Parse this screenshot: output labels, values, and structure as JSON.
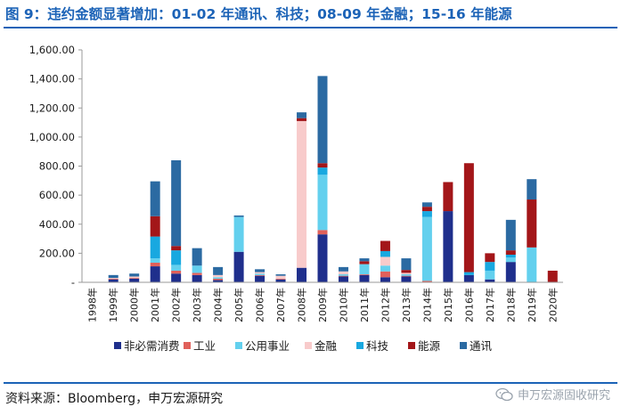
{
  "figure": {
    "title": "图 9：违约金额显著增加：01-02 年通讯、科技；08-09 年金融；15-16 年能源",
    "source": "资料来源：Bloomberg，申万宏源研究",
    "watermark": "申万宏源固收研究",
    "accent_color": "#1c63b7"
  },
  "chart_data": {
    "type": "bar",
    "stacked": true,
    "title": "",
    "xlabel": "",
    "ylabel": "",
    "ylim": [
      0,
      1600
    ],
    "yticks": [
      "-",
      "200.00",
      "400.00",
      "600.00",
      "800.00",
      "1,000.00",
      "1,200.00",
      "1,400.00",
      "1,600.00"
    ],
    "grid": false,
    "legend_position": "bottom",
    "categories": [
      "1998年",
      "1999年",
      "2000年",
      "2001年",
      "2002年",
      "2003年",
      "2004年",
      "2005年",
      "2006年",
      "2007年",
      "2008年",
      "2009年",
      "2010年",
      "2011年",
      "2012年",
      "2013年",
      "2014年",
      "2015年",
      "2016年",
      "2017年",
      "2018年",
      "2019年",
      "2020年"
    ],
    "series": [
      {
        "name": "非必需消费",
        "color": "#1f2f8c",
        "values": [
          0,
          20,
          25,
          110,
          60,
          50,
          15,
          210,
          45,
          20,
          100,
          330,
          40,
          50,
          35,
          40,
          0,
          490,
          50,
          20,
          140,
          0,
          0
        ]
      },
      {
        "name": "工业",
        "color": "#e0605a",
        "values": [
          0,
          5,
          5,
          25,
          20,
          15,
          10,
          0,
          5,
          5,
          0,
          30,
          5,
          5,
          40,
          5,
          10,
          0,
          0,
          0,
          0,
          0,
          0
        ]
      },
      {
        "name": "公用事业",
        "color": "#63d0ee",
        "values": [
          0,
          0,
          0,
          30,
          40,
          50,
          10,
          240,
          10,
          0,
          0,
          380,
          10,
          70,
          40,
          10,
          440,
          0,
          0,
          60,
          30,
          240,
          0
        ]
      },
      {
        "name": "金融",
        "color": "#f8cbcb",
        "values": [
          0,
          5,
          10,
          0,
          0,
          0,
          15,
          0,
          10,
          20,
          1010,
          0,
          20,
          0,
          60,
          10,
          0,
          0,
          0,
          0,
          0,
          0,
          0
        ]
      },
      {
        "name": "科技",
        "color": "#18a8e0",
        "values": [
          0,
          0,
          0,
          150,
          100,
          0,
          0,
          0,
          0,
          0,
          0,
          50,
          0,
          0,
          40,
          0,
          40,
          0,
          20,
          60,
          20,
          0,
          0
        ]
      },
      {
        "name": "能源",
        "color": "#a31619",
        "values": [
          0,
          0,
          0,
          140,
          30,
          0,
          0,
          0,
          0,
          0,
          20,
          30,
          0,
          20,
          70,
          20,
          30,
          200,
          750,
          60,
          30,
          330,
          80
        ]
      },
      {
        "name": "通讯",
        "color": "#2b6aa2",
        "values": [
          0,
          20,
          20,
          240,
          590,
          120,
          55,
          10,
          20,
          10,
          40,
          600,
          30,
          20,
          0,
          80,
          30,
          0,
          0,
          0,
          210,
          140,
          0
        ]
      }
    ]
  }
}
